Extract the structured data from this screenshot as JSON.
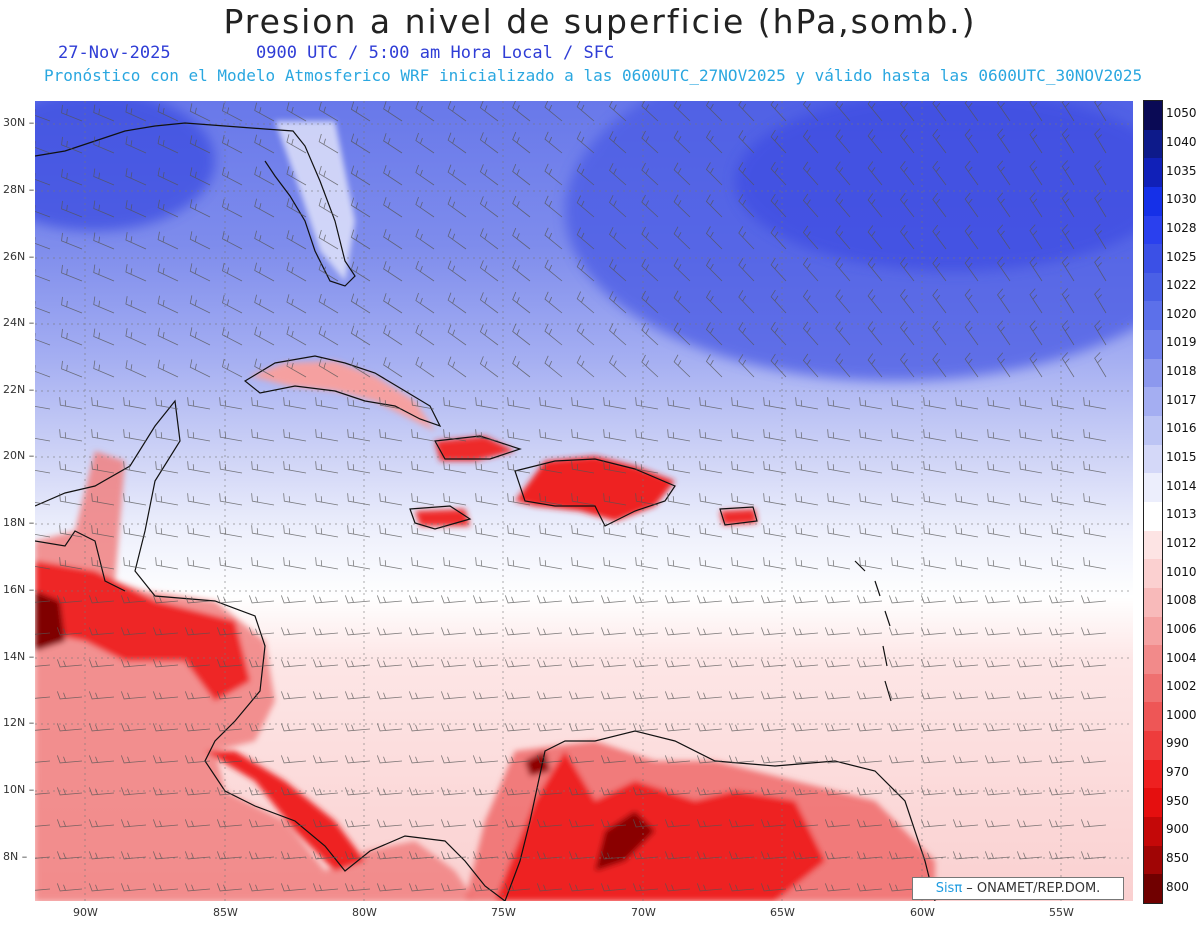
{
  "header": {
    "title": "Presion a nivel de superficie (hPa,somb.)",
    "date": "27-Nov-2025",
    "time": "0900 UTC / 5:00 am Hora Local / SFC",
    "forecast": "Pronóstico con el Modelo Atmosferico WRF inicializado a las 0600UTC_27NOV2025 y válido hasta las  0600UTC_30NOV2025"
  },
  "map": {
    "lat_labels": [
      "30N",
      "28N",
      "26N",
      "24N",
      "22N",
      "20N",
      "18N",
      "16N",
      "14N",
      "12N",
      "10N",
      "8N"
    ],
    "lon_labels": [
      "90W",
      "85W",
      "80W",
      "75W",
      "70W",
      "65W",
      "60W",
      "55W"
    ],
    "lat_range": [
      7,
      30.7
    ],
    "lon_range": [
      -91.8,
      -52.5
    ]
  },
  "colorbar": {
    "levels": [
      "1050",
      "1040",
      "1035",
      "1030",
      "1028",
      "1025",
      "1022",
      "1020",
      "1019",
      "1018",
      "1017",
      "1016",
      "1015",
      "1014",
      "1013",
      "1012",
      "1010",
      "1008",
      "1006",
      "1004",
      "1002",
      "1000",
      "990",
      "970",
      "950",
      "900",
      "850",
      "800"
    ],
    "colors": [
      "#0a0a55",
      "#0d1a8a",
      "#1020b8",
      "#1530e8",
      "#2a40ee",
      "#3b50e6",
      "#4a60e6",
      "#5c70ea",
      "#7080ec",
      "#8c98ee",
      "#a4aef2",
      "#bcc4f4",
      "#d4d8f8",
      "#eceefc",
      "#ffffff",
      "#fde4e4",
      "#fbd0d0",
      "#f8baba",
      "#f5a2a2",
      "#f28a8a",
      "#ef7070",
      "#ee5656",
      "#ee3c3c",
      "#ee2020",
      "#e50f0f",
      "#c40808",
      "#a00505",
      "#700000"
    ]
  },
  "branding": {
    "logo": "Sisπ",
    "text": " – ONAMET/REP.DOM."
  }
}
